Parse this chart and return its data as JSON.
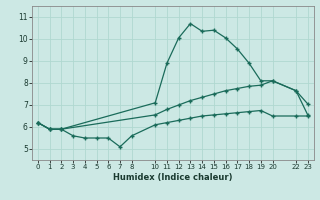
{
  "xlabel": "Humidex (Indice chaleur)",
  "background_color": "#cce8e4",
  "grid_color": "#b0d8d0",
  "line_color": "#1a6b5a",
  "xlim": [
    -0.5,
    23.5
  ],
  "ylim": [
    4.5,
    11.5
  ],
  "xticks": [
    0,
    1,
    2,
    3,
    4,
    5,
    6,
    7,
    8,
    10,
    11,
    12,
    13,
    14,
    15,
    16,
    17,
    18,
    19,
    20,
    22,
    23
  ],
  "yticks": [
    5,
    6,
    7,
    8,
    9,
    10,
    11
  ],
  "series1_x": [
    0,
    1,
    2,
    10,
    11,
    12,
    13,
    14,
    15,
    16,
    17,
    18,
    19,
    20,
    22,
    23
  ],
  "series1_y": [
    6.2,
    5.9,
    5.9,
    7.1,
    8.9,
    10.05,
    10.7,
    10.35,
    10.4,
    10.05,
    9.55,
    8.9,
    8.1,
    8.1,
    7.65,
    7.05
  ],
  "series2_x": [
    0,
    1,
    2,
    10,
    11,
    12,
    13,
    14,
    15,
    16,
    17,
    18,
    19,
    20,
    22,
    23
  ],
  "series2_y": [
    6.2,
    5.9,
    5.9,
    6.55,
    6.8,
    7.0,
    7.2,
    7.35,
    7.5,
    7.65,
    7.75,
    7.85,
    7.9,
    8.1,
    7.65,
    6.55
  ],
  "series3_x": [
    0,
    1,
    2,
    3,
    4,
    5,
    6,
    7,
    8,
    10,
    11,
    12,
    13,
    14,
    15,
    16,
    17,
    18,
    19,
    20,
    22,
    23
  ],
  "series3_y": [
    6.2,
    5.9,
    5.9,
    5.6,
    5.5,
    5.5,
    5.5,
    5.1,
    5.6,
    6.1,
    6.2,
    6.3,
    6.4,
    6.5,
    6.55,
    6.6,
    6.65,
    6.7,
    6.75,
    6.5,
    6.5,
    6.5
  ]
}
